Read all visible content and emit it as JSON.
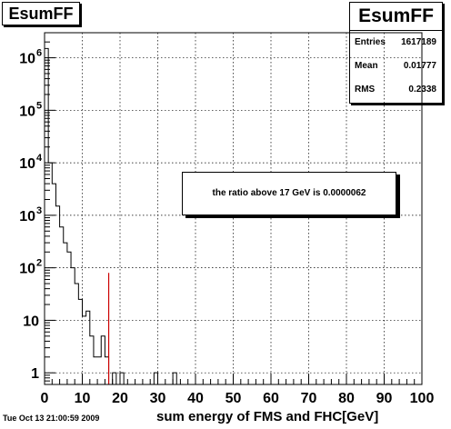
{
  "window": {
    "title": "EsumFF"
  },
  "stats": {
    "title": "EsumFF",
    "rows": [
      {
        "label": "Entries",
        "value": "1617189"
      },
      {
        "label": "Mean",
        "value": "0.01777"
      },
      {
        "label": "RMS",
        "value": "0.2338"
      }
    ]
  },
  "annotation": "the ratio above 17 GeV is 0.0000062",
  "timestamp": "Tue Oct 13 21:00:59 2009",
  "colors": {
    "histogram": "#000000",
    "cut_line": "#cc0000",
    "grid": "#000000"
  },
  "chart_data": {
    "type": "histogram",
    "title": "EsumFF",
    "xlabel": "sum energy of FMS and FHC[GeV]",
    "ylabel": "",
    "log_y": true,
    "grid": true,
    "xlim": [
      0,
      100
    ],
    "ylim": [
      0.6,
      3000000
    ],
    "x_ticks": [
      0,
      10,
      20,
      30,
      40,
      50,
      60,
      70,
      80,
      90,
      100
    ],
    "y_ticks": [
      {
        "value": 1,
        "base": "1",
        "exp": ""
      },
      {
        "value": 10,
        "base": "10",
        "exp": ""
      },
      {
        "value": 100,
        "base": "10",
        "exp": "2"
      },
      {
        "value": 1000,
        "base": "10",
        "exp": "3"
      },
      {
        "value": 10000,
        "base": "10",
        "exp": "4"
      },
      {
        "value": 100000,
        "base": "10",
        "exp": "5"
      },
      {
        "value": 1000000,
        "base": "10",
        "exp": "6"
      }
    ],
    "bin_width": 1,
    "bins": [
      {
        "x": 0,
        "y": 1500000
      },
      {
        "x": 1,
        "y": 10000
      },
      {
        "x": 2,
        "y": 4000
      },
      {
        "x": 3,
        "y": 1500
      },
      {
        "x": 4,
        "y": 600
      },
      {
        "x": 5,
        "y": 300
      },
      {
        "x": 6,
        "y": 200
      },
      {
        "x": 7,
        "y": 100
      },
      {
        "x": 8,
        "y": 50
      },
      {
        "x": 9,
        "y": 25
      },
      {
        "x": 10,
        "y": 12
      },
      {
        "x": 11,
        "y": 15
      },
      {
        "x": 12,
        "y": 5
      },
      {
        "x": 13,
        "y": 2
      },
      {
        "x": 14,
        "y": 2
      },
      {
        "x": 15,
        "y": 5
      },
      {
        "x": 16,
        "y": 2
      },
      {
        "x": 17,
        "y": 0
      },
      {
        "x": 18,
        "y": 1
      },
      {
        "x": 19,
        "y": 0
      },
      {
        "x": 20,
        "y": 1
      },
      {
        "x": 21,
        "y": 0
      },
      {
        "x": 29,
        "y": 1
      },
      {
        "x": 30,
        "y": 0
      },
      {
        "x": 34,
        "y": 1
      },
      {
        "x": 35,
        "y": 0
      }
    ],
    "cut_line": {
      "x": 17,
      "y_top": 80
    }
  }
}
